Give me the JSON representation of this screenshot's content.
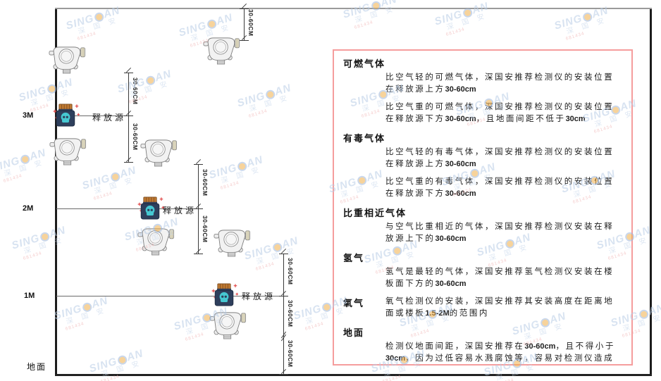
{
  "diagram": {
    "levels": [
      {
        "label": "3M"
      },
      {
        "label": "2M"
      },
      {
        "label": "1M"
      }
    ],
    "ground_label": "地面",
    "source_label": "释放源",
    "dimension_label": "30-60CM"
  },
  "panel": {
    "sections": [
      {
        "header": "可燃气体",
        "inline": false,
        "paragraphs": [
          "比空气轻的可燃气体，深国安推荐检测仪的安装位置在释放源上方30-60cm",
          "比空气重的可燃气体，深国安推荐检测仪的安装位置在释放源下方30-60cm，且地面间距不低于30cm"
        ]
      },
      {
        "header": "有毒气体",
        "inline": false,
        "paragraphs": [
          "比空气轻的有毒气体，深国安推荐检测仪的安装位置在释放源上方30-60cm",
          "比空气重的有毒气体，深国安推荐检测仪的安装位置在释放源下方30-60cm"
        ]
      },
      {
        "header": "比重相近气体",
        "inline": false,
        "paragraphs": [
          "与空气比重相近的气体，深国安推荐检测仪安装在释放源上下的30-60cm"
        ]
      },
      {
        "header": "氢气",
        "inline": false,
        "paragraphs": [
          "氢气是最轻的气体，深国安推荐氢气检测仪安装在楼板面下方的30-60cm"
        ]
      },
      {
        "header": "氧气",
        "inline": true,
        "paragraphs": [
          "氧气检测仪的安装，深国安推荐其安装高度在距离地面或楼板1.5-2M的范围内"
        ]
      },
      {
        "header": "地面",
        "inline": false,
        "paragraphs": [
          "检测仪地面间距，深国安推荐在30-60cm，且不得小于30cm，因为过低容易水溅腐蚀等，容易对检测仪造成伤害"
        ]
      }
    ]
  },
  "watermark": {
    "brand_latin_left": "SING",
    "brand_latin_right": "AN",
    "brand_chinese": "深 国 安",
    "code": "681434"
  },
  "colors": {
    "panel_border": "#f59d9d",
    "source_body": "#2e3f5c",
    "source_accent": "#46c8d2",
    "source_lid": "#c07a32",
    "spark_red": "#e04848",
    "watermark_blue": "#b9cde6"
  }
}
